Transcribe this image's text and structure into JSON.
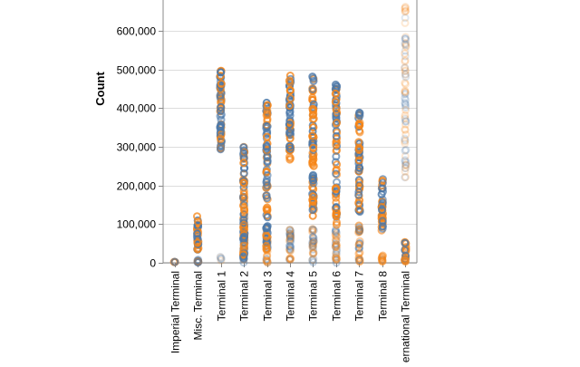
{
  "chart_data": {
    "type": "scatter",
    "ylabel": "Count",
    "xlabel": "",
    "ylim": [
      0,
      680000
    ],
    "yticks": [
      0,
      100000,
      200000,
      300000,
      400000,
      500000,
      600000
    ],
    "ytick_labels": [
      "0",
      "100,000",
      "200,000",
      "300,000",
      "400,000",
      "500,000",
      "600,000"
    ],
    "categories": [
      "Imperial Terminal",
      "Misc. Terminal",
      "Terminal 1",
      "Terminal 2",
      "Terminal 3",
      "Terminal 4",
      "Terminal 5",
      "Terminal 6",
      "Terminal 7",
      "Terminal 8",
      "International Terminal"
    ],
    "grid": "horizontal",
    "colors": [
      "#4c78a8",
      "#f58518"
    ],
    "point_style": "open-circle",
    "distribution_by_category": [
      {
        "category": "Imperial Terminal",
        "clusters": [
          {
            "min": 0,
            "max": 3000,
            "n": 4,
            "opacity": 0.9
          }
        ]
      },
      {
        "category": "Misc. Terminal",
        "clusters": [
          {
            "min": 0,
            "max": 8000,
            "n": 12,
            "opacity": 0.6
          },
          {
            "min": 25000,
            "max": 130000,
            "n": 30,
            "opacity": 0.85
          }
        ]
      },
      {
        "category": "Terminal 1",
        "clusters": [
          {
            "min": 0,
            "max": 20000,
            "n": 6,
            "opacity": 0.2
          },
          {
            "min": 290000,
            "max": 500000,
            "n": 60,
            "opacity": 0.85
          }
        ]
      },
      {
        "category": "Terminal 2",
        "clusters": [
          {
            "min": 0,
            "max": 130000,
            "n": 40,
            "opacity": 0.5
          },
          {
            "min": 10000,
            "max": 305000,
            "n": 70,
            "opacity": 0.85
          }
        ]
      },
      {
        "category": "Terminal 3",
        "clusters": [
          {
            "min": 0,
            "max": 90000,
            "n": 30,
            "opacity": 0.4
          },
          {
            "min": 20000,
            "max": 420000,
            "n": 80,
            "opacity": 0.85
          }
        ]
      },
      {
        "category": "Terminal 4",
        "clusters": [
          {
            "min": 0,
            "max": 90000,
            "n": 30,
            "opacity": 0.4
          },
          {
            "min": 260000,
            "max": 485000,
            "n": 60,
            "opacity": 0.85
          }
        ]
      },
      {
        "category": "Terminal 5",
        "clusters": [
          {
            "min": 0,
            "max": 90000,
            "n": 30,
            "opacity": 0.35
          },
          {
            "min": 115000,
            "max": 485000,
            "n": 80,
            "opacity": 0.85
          }
        ]
      },
      {
        "category": "Terminal 6",
        "clusters": [
          {
            "min": 0,
            "max": 90000,
            "n": 30,
            "opacity": 0.35
          },
          {
            "min": 95000,
            "max": 465000,
            "n": 70,
            "opacity": 0.85
          }
        ]
      },
      {
        "category": "Terminal 7",
        "clusters": [
          {
            "min": 0,
            "max": 100000,
            "n": 30,
            "opacity": 0.45
          },
          {
            "min": 130000,
            "max": 395000,
            "n": 60,
            "opacity": 0.85
          }
        ]
      },
      {
        "category": "Terminal 8",
        "clusters": [
          {
            "min": 0,
            "max": 20000,
            "n": 10,
            "opacity": 0.5
          },
          {
            "min": 80000,
            "max": 220000,
            "n": 40,
            "opacity": 0.85
          }
        ]
      },
      {
        "category": "International Terminal",
        "clusters": [
          {
            "min": 0,
            "max": 60000,
            "n": 20,
            "opacity": 0.85
          },
          {
            "min": 220000,
            "max": 680000,
            "n": 70,
            "opacity": 0.22
          }
        ]
      }
    ]
  }
}
